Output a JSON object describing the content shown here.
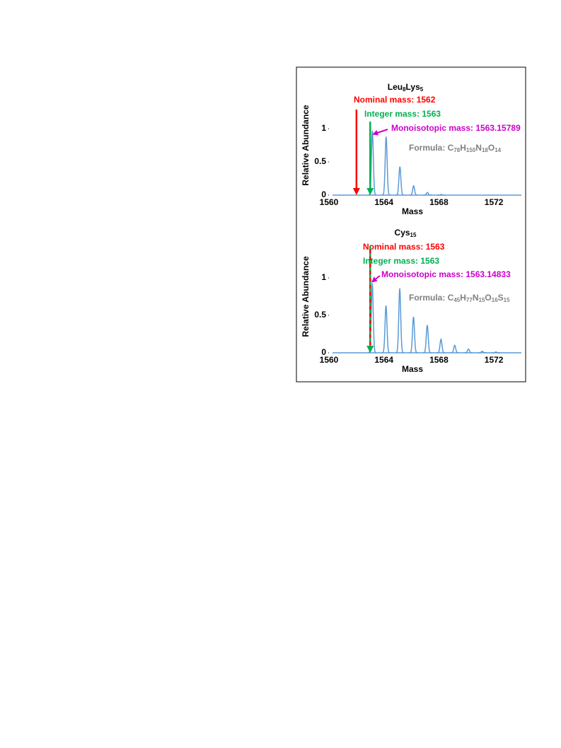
{
  "chart_data": [
    {
      "type": "line",
      "title": "Leu8Lys5",
      "x_label": "Mass",
      "y_label": "Relative  Abundance",
      "xlim": [
        1560,
        1574
      ],
      "xticks": [
        1560,
        1564,
        1568,
        1572
      ],
      "ylim": [
        0,
        1.5
      ],
      "yticks": [
        0,
        0.5,
        1
      ],
      "color": "#5b9bd5",
      "x": [
        1563.158,
        1564.16,
        1565.16,
        1566.16,
        1567.16,
        1568.16
      ],
      "values": [
        0.97,
        0.88,
        0.43,
        0.14,
        0.04,
        0.01
      ],
      "annotations": [
        {
          "text": "Nominal mass: 1562",
          "x": 1562,
          "color": "#ff0000"
        },
        {
          "text": "Integer mass: 1563",
          "x": 1563,
          "color": "#00b050"
        },
        {
          "text": "Monoisotopic mass: 1563.15789",
          "color": "#cc00cc"
        }
      ],
      "formula": "Formula: C78H150N18O14"
    },
    {
      "type": "line",
      "title": "Cys15",
      "x_label": "Mass",
      "y_label": "Relative  Abundance",
      "xlim": [
        1560,
        1574
      ],
      "xticks": [
        1560,
        1564,
        1568,
        1572
      ],
      "ylim": [
        0,
        1.5
      ],
      "yticks": [
        0,
        0.5,
        1
      ],
      "color": "#5b9bd5",
      "x": [
        1563.148,
        1564.15,
        1565.15,
        1566.15,
        1567.15,
        1568.15,
        1569.15,
        1570.15,
        1571.15,
        1572.15
      ],
      "values": [
        0.93,
        0.63,
        0.86,
        0.48,
        0.37,
        0.18,
        0.1,
        0.05,
        0.02,
        0.01
      ],
      "annotations": [
        {
          "text": "Nominal mass: 1563",
          "x": 1563,
          "color": "#ff0000"
        },
        {
          "text": "Integer mass: 1563",
          "x": 1563,
          "color": "#00b050"
        },
        {
          "text": "Monoisotopic mass: 1563.14833",
          "color": "#cc00cc"
        }
      ],
      "formula": "Formula: C45H77N15O16S15"
    }
  ]
}
